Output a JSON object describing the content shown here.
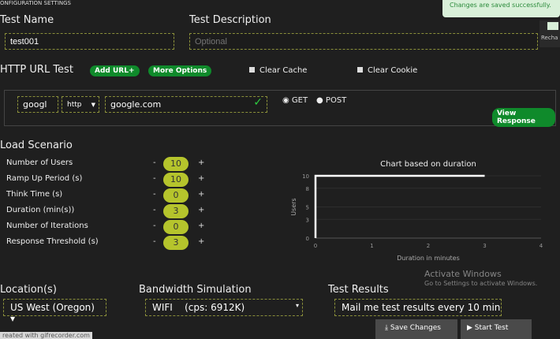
{
  "header": {
    "title": "ONFIGURATION SETTINGS"
  },
  "toast": {
    "message": "Changes are saved successfully."
  },
  "side": {
    "label": "Recha"
  },
  "test_name": {
    "label": "Test Name",
    "value": "test001"
  },
  "test_description": {
    "label": "Test Description",
    "placeholder": "Optional"
  },
  "http": {
    "label": "HTTP URL Test",
    "add_url": "Add URL+",
    "more_options": "More Options",
    "clear_cache": "Clear Cache",
    "clear_cookie": "Clear Cookie",
    "name_value": "googl",
    "protocol": "http",
    "url": "google.com",
    "methods": [
      "GET",
      "POST"
    ],
    "view_response": "View Response"
  },
  "load": {
    "label": "Load Scenario",
    "items": [
      {
        "label": "Number of Users",
        "value": "10"
      },
      {
        "label": "Ramp Up Period (s)",
        "value": "10"
      },
      {
        "label": "Think Time (s)",
        "value": "0"
      },
      {
        "label": "Duration (min(s))",
        "value": "3"
      },
      {
        "label": "Number of Iterations",
        "value": "0"
      },
      {
        "label": "Response Threshold (s)",
        "value": "3"
      }
    ],
    "minus": "-",
    "plus": "+"
  },
  "chart_data": {
    "type": "line",
    "title": "Chart based on duration",
    "xlabel": "Duration in minutes",
    "ylabel": "Users",
    "x": [
      0,
      0,
      3
    ],
    "y": [
      0,
      10,
      10
    ],
    "xlim": [
      0,
      4
    ],
    "ylim": [
      0,
      10
    ],
    "xticks": [
      "0",
      "1",
      "2",
      "3",
      "4"
    ],
    "yticks": [
      "0",
      "3",
      "5",
      "8",
      "10"
    ],
    "color": "#ffffff",
    "grid": true
  },
  "location": {
    "label": "Location(s)",
    "value": "US West (Oregon)"
  },
  "bandwidth": {
    "label": "Bandwidth Simulation",
    "value": "WIFI",
    "detail": "(cps: 6912K)"
  },
  "results": {
    "label": "Test Results",
    "value": "Mail me test results every 10 min"
  },
  "footer": {
    "save": "Save Changes",
    "start": "Start Test",
    "watermark": "reated with gifrecorder.com",
    "activate1": "Activate Windows",
    "activate2": "Go to Settings to activate Windows."
  }
}
